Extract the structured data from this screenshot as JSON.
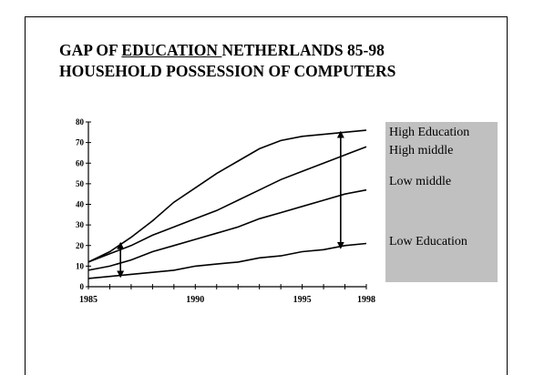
{
  "slide": {
    "title_line1_pre": "GAP OF ",
    "title_line1_underlined": "EDUCATION ",
    "title_line1_post": "NETHERLANDS 85-98",
    "title_line2": "HOUSEHOLD POSSESSION OF COMPUTERS"
  },
  "chart_data": {
    "type": "line",
    "title": "GAP OF EDUCATION NETHERLANDS 85-98 HOUSEHOLD POSSESSION OF COMPUTERS",
    "xlabel": "",
    "ylabel": "",
    "xlim": [
      1985,
      1998
    ],
    "ylim": [
      0,
      80
    ],
    "x_ticks": [
      1985,
      1990,
      1995,
      1998
    ],
    "y_ticks": [
      0,
      10,
      20,
      30,
      40,
      50,
      60,
      70,
      80
    ],
    "grid": false,
    "legend_placement": "right",
    "series": [
      {
        "name": "High Education",
        "x": [
          1985,
          1986,
          1987,
          1988,
          1989,
          1990,
          1991,
          1992,
          1993,
          1994,
          1995,
          1996,
          1997,
          1998
        ],
        "values": [
          12,
          17,
          24,
          32,
          41,
          48,
          55,
          61,
          67,
          71,
          73,
          74,
          75,
          76
        ]
      },
      {
        "name": "High middle",
        "x": [
          1985,
          1986,
          1987,
          1988,
          1989,
          1990,
          1991,
          1992,
          1993,
          1994,
          1995,
          1996,
          1997,
          1998
        ],
        "values": [
          12,
          16,
          20,
          25,
          29,
          33,
          37,
          42,
          47,
          52,
          56,
          60,
          64,
          68
        ]
      },
      {
        "name": "Low middle",
        "x": [
          1985,
          1986,
          1987,
          1988,
          1989,
          1990,
          1991,
          1992,
          1993,
          1994,
          1995,
          1996,
          1997,
          1998
        ],
        "values": [
          8,
          10,
          13,
          17,
          20,
          23,
          26,
          29,
          33,
          36,
          39,
          42,
          45,
          47
        ]
      },
      {
        "name": "Low Education",
        "x": [
          1985,
          1986,
          1987,
          1988,
          1989,
          1990,
          1991,
          1992,
          1993,
          1994,
          1995,
          1996,
          1997,
          1998
        ],
        "values": [
          4,
          5,
          6,
          7,
          8,
          10,
          11,
          12,
          14,
          15,
          17,
          18,
          20,
          21
        ]
      }
    ],
    "annotations": [
      {
        "type": "double-arrow",
        "x": 1986.5,
        "y_from": 6,
        "y_to": 20
      },
      {
        "type": "double-arrow",
        "x": 1996.8,
        "y_from": 20,
        "y_to": 74
      }
    ],
    "colors": {
      "line": "#000000",
      "legend_background": "#c0c0c0"
    }
  }
}
